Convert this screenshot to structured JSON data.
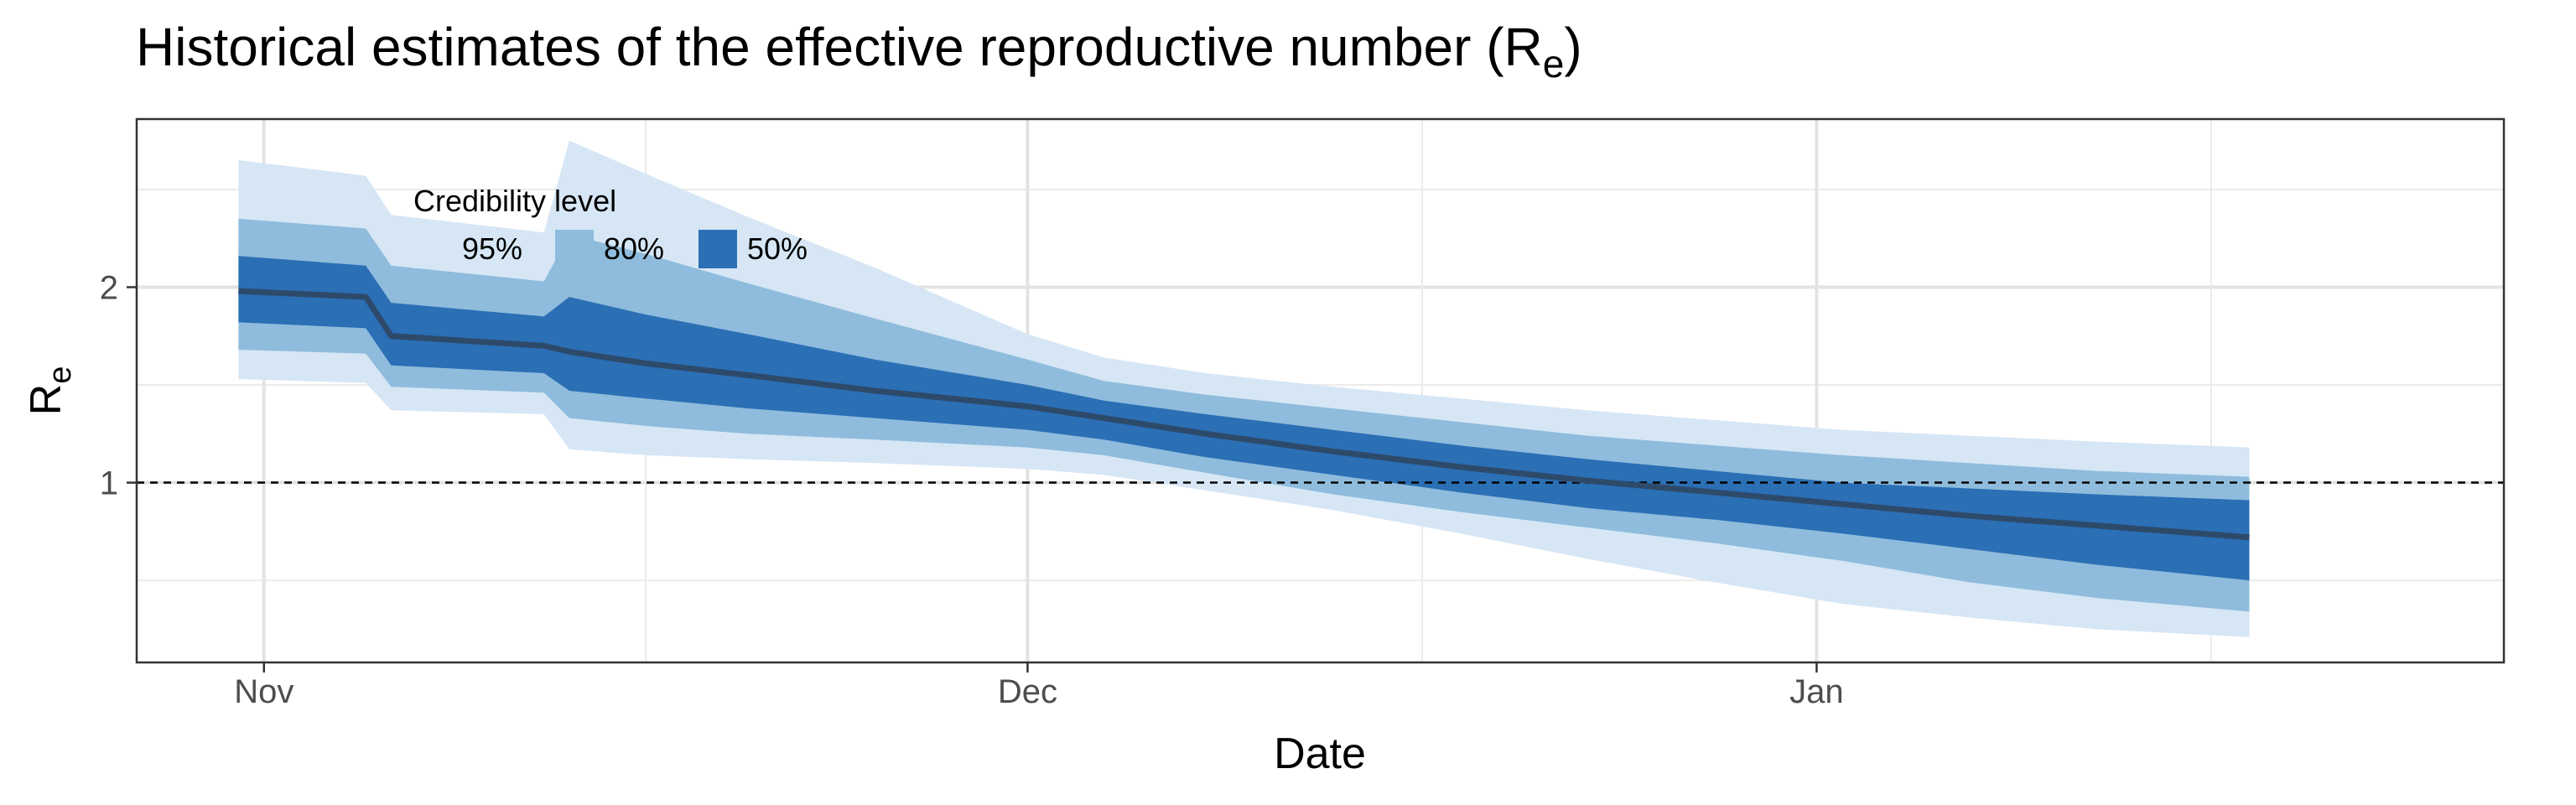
{
  "chart_data": {
    "type": "area",
    "title": "Historical estimates of the effective reproductive number (R",
    "title_sub": "e",
    "title_end": ")",
    "xlabel": "Date",
    "ylabel": "R",
    "ylabel_sub": "e",
    "x_ticks": [
      {
        "date": "2020-11-01",
        "label": "Nov"
      },
      {
        "date": "2020-12-01",
        "label": "Dec"
      },
      {
        "date": "2021-01-01",
        "label": "Jan"
      }
    ],
    "y_ticks": [
      {
        "value": 1,
        "label": "1"
      },
      {
        "value": 2,
        "label": "2"
      }
    ],
    "xlim": [
      "2020-10-27",
      "2021-01-28"
    ],
    "ylim": [
      0.08,
      2.86
    ],
    "reference_line": {
      "y": 1,
      "style": "dashed"
    },
    "grid": true,
    "legend": {
      "title": "Credibility level",
      "position": "top-left inside",
      "items": [
        {
          "label": "95%",
          "color": "#d6e6f5"
        },
        {
          "label": "80%",
          "color": "#8fbcdc"
        },
        {
          "label": "50%",
          "color": "#2b6fb5"
        }
      ]
    },
    "colors": {
      "ci95": "#d6e6f5",
      "ci80": "#8fbcdc",
      "ci50": "#2b6fb5",
      "median": "#2e4a6b"
    },
    "dates": [
      "2020-10-31",
      "2020-11-05",
      "2020-11-06",
      "2020-11-12",
      "2020-11-13",
      "2020-11-16",
      "2020-11-20",
      "2020-11-25",
      "2020-12-01",
      "2020-12-04",
      "2020-12-08",
      "2020-12-13",
      "2020-12-18",
      "2020-12-23",
      "2020-12-28",
      "2021-01-02",
      "2021-01-07",
      "2021-01-12",
      "2021-01-18"
    ],
    "median": [
      1.98,
      1.95,
      1.75,
      1.7,
      1.67,
      1.61,
      1.55,
      1.47,
      1.39,
      1.33,
      1.25,
      1.16,
      1.08,
      1.01,
      0.95,
      0.89,
      0.83,
      0.78,
      0.72
    ],
    "ci50_upper": [
      2.16,
      2.11,
      1.92,
      1.85,
      1.95,
      1.86,
      1.76,
      1.63,
      1.5,
      1.42,
      1.35,
      1.27,
      1.19,
      1.12,
      1.06,
      1.0,
      0.97,
      0.94,
      0.91
    ],
    "ci50_lower": [
      1.82,
      1.79,
      1.6,
      1.56,
      1.47,
      1.43,
      1.38,
      1.33,
      1.27,
      1.22,
      1.13,
      1.04,
      0.95,
      0.87,
      0.81,
      0.74,
      0.66,
      0.58,
      0.5
    ],
    "ci80_upper": [
      2.35,
      2.3,
      2.11,
      2.03,
      2.27,
      2.17,
      2.02,
      1.84,
      1.63,
      1.52,
      1.45,
      1.38,
      1.31,
      1.24,
      1.19,
      1.14,
      1.1,
      1.06,
      1.03
    ],
    "ci80_lower": [
      1.68,
      1.66,
      1.49,
      1.46,
      1.33,
      1.29,
      1.25,
      1.22,
      1.18,
      1.14,
      1.05,
      0.94,
      0.85,
      0.77,
      0.69,
      0.6,
      0.49,
      0.41,
      0.34
    ],
    "ci95_upper": [
      2.65,
      2.57,
      2.37,
      2.28,
      2.75,
      2.58,
      2.36,
      2.1,
      1.76,
      1.64,
      1.56,
      1.49,
      1.43,
      1.37,
      1.32,
      1.27,
      1.24,
      1.21,
      1.18
    ],
    "ci95_lower": [
      1.53,
      1.51,
      1.37,
      1.35,
      1.17,
      1.14,
      1.12,
      1.1,
      1.07,
      1.04,
      0.96,
      0.86,
      0.74,
      0.61,
      0.49,
      0.38,
      0.31,
      0.25,
      0.21
    ]
  }
}
